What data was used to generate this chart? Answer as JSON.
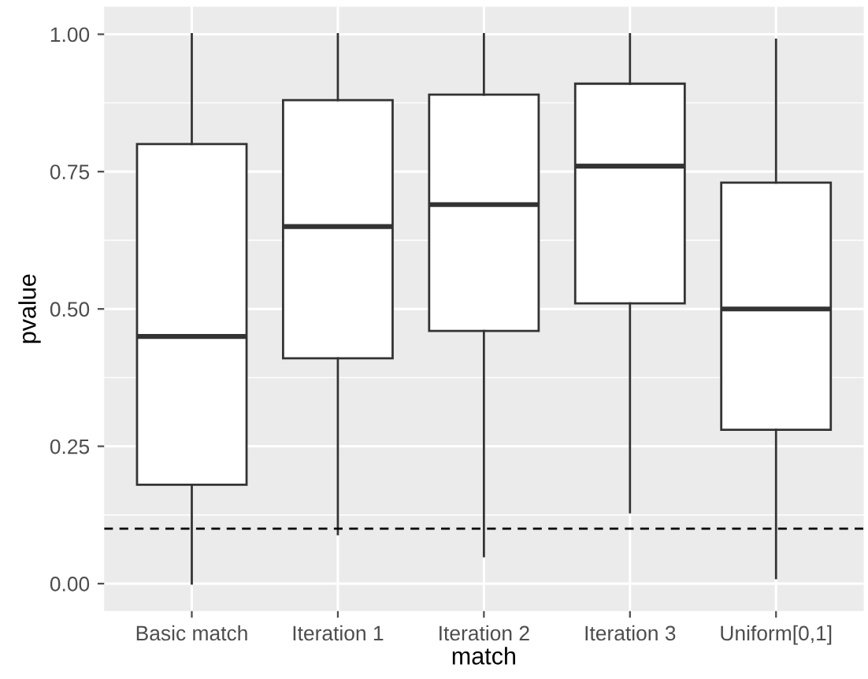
{
  "chart_data": {
    "type": "box",
    "xlabel": "match",
    "ylabel": "pvalue",
    "categories": [
      "Basic match",
      "Iteration 1",
      "Iteration 2",
      "Iteration 3",
      "Uniform[0,1]"
    ],
    "boxes": [
      {
        "low": 0.0,
        "q1": 0.18,
        "median": 0.45,
        "q3": 0.8,
        "high": 1.0
      },
      {
        "low": 0.09,
        "q1": 0.41,
        "median": 0.65,
        "q3": 0.88,
        "high": 1.0
      },
      {
        "low": 0.05,
        "q1": 0.46,
        "median": 0.69,
        "q3": 0.89,
        "high": 1.0
      },
      {
        "low": 0.13,
        "q1": 0.51,
        "median": 0.76,
        "q3": 0.91,
        "high": 1.0
      },
      {
        "low": 0.01,
        "q1": 0.28,
        "median": 0.5,
        "q3": 0.73,
        "high": 0.99
      }
    ],
    "ylim": [
      -0.05,
      1.05
    ],
    "yticks": [
      {
        "value": 0,
        "label": "0.00"
      },
      {
        "value": 0.25,
        "label": "0.25"
      },
      {
        "value": 0.5,
        "label": "0.50"
      },
      {
        "value": 0.75,
        "label": "0.75"
      },
      {
        "value": 1,
        "label": "1.00"
      }
    ],
    "ref_lines": [
      {
        "axis": "y",
        "value": 0.1,
        "line_style": "dashed",
        "color": "#000000"
      }
    ],
    "grid": true
  }
}
